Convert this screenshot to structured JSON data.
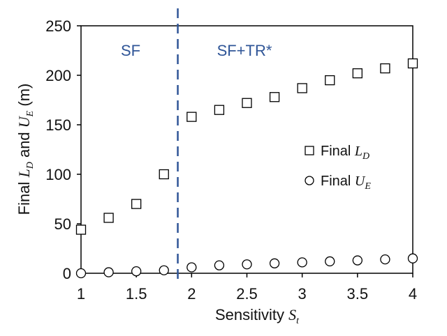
{
  "chart_data": {
    "type": "scatter",
    "title": "",
    "xlabel": "Sensitivity",
    "xlabel_symbol": "S",
    "xlabel_symbol_sub": "t",
    "ylabel_prefix": "Final",
    "ylabel_sym1": "L",
    "ylabel_sym1_sub": "D",
    "ylabel_and": "and",
    "ylabel_sym2": "U",
    "ylabel_sym2_sub": "E",
    "ylabel_unit": "(m)",
    "xlim": [
      1,
      4
    ],
    "ylim": [
      0,
      250
    ],
    "xticks": [
      "1",
      "1.5",
      "2",
      "2.5",
      "3",
      "3.5",
      "4"
    ],
    "yticks": [
      "0",
      "50",
      "100",
      "150",
      "200",
      "250"
    ],
    "grid": false,
    "legend_position": "right-center",
    "divider": {
      "x": 1.875,
      "style": "dashed",
      "color": "#2f5597"
    },
    "regions": [
      {
        "label": "SF"
      },
      {
        "label": "SF+TR*"
      }
    ],
    "series": [
      {
        "name": "Final",
        "name_symbol": "L",
        "name_symbol_sub": "D",
        "marker": "square",
        "x": [
          1,
          1.25,
          1.5,
          1.75,
          2,
          2.25,
          2.5,
          2.75,
          3,
          3.25,
          3.5,
          3.75,
          4
        ],
        "y": [
          44,
          56,
          70,
          100,
          158,
          165,
          172,
          178,
          187,
          195,
          202,
          207,
          212
        ]
      },
      {
        "name": "Final",
        "name_symbol": "U",
        "name_symbol_sub": "E",
        "marker": "circle",
        "x": [
          1,
          1.25,
          1.5,
          1.75,
          2,
          2.25,
          2.5,
          2.75,
          3,
          3.25,
          3.5,
          3.75,
          4
        ],
        "y": [
          0,
          1,
          2,
          3,
          6,
          8,
          9,
          10,
          11,
          12,
          13,
          14,
          15
        ]
      }
    ]
  }
}
